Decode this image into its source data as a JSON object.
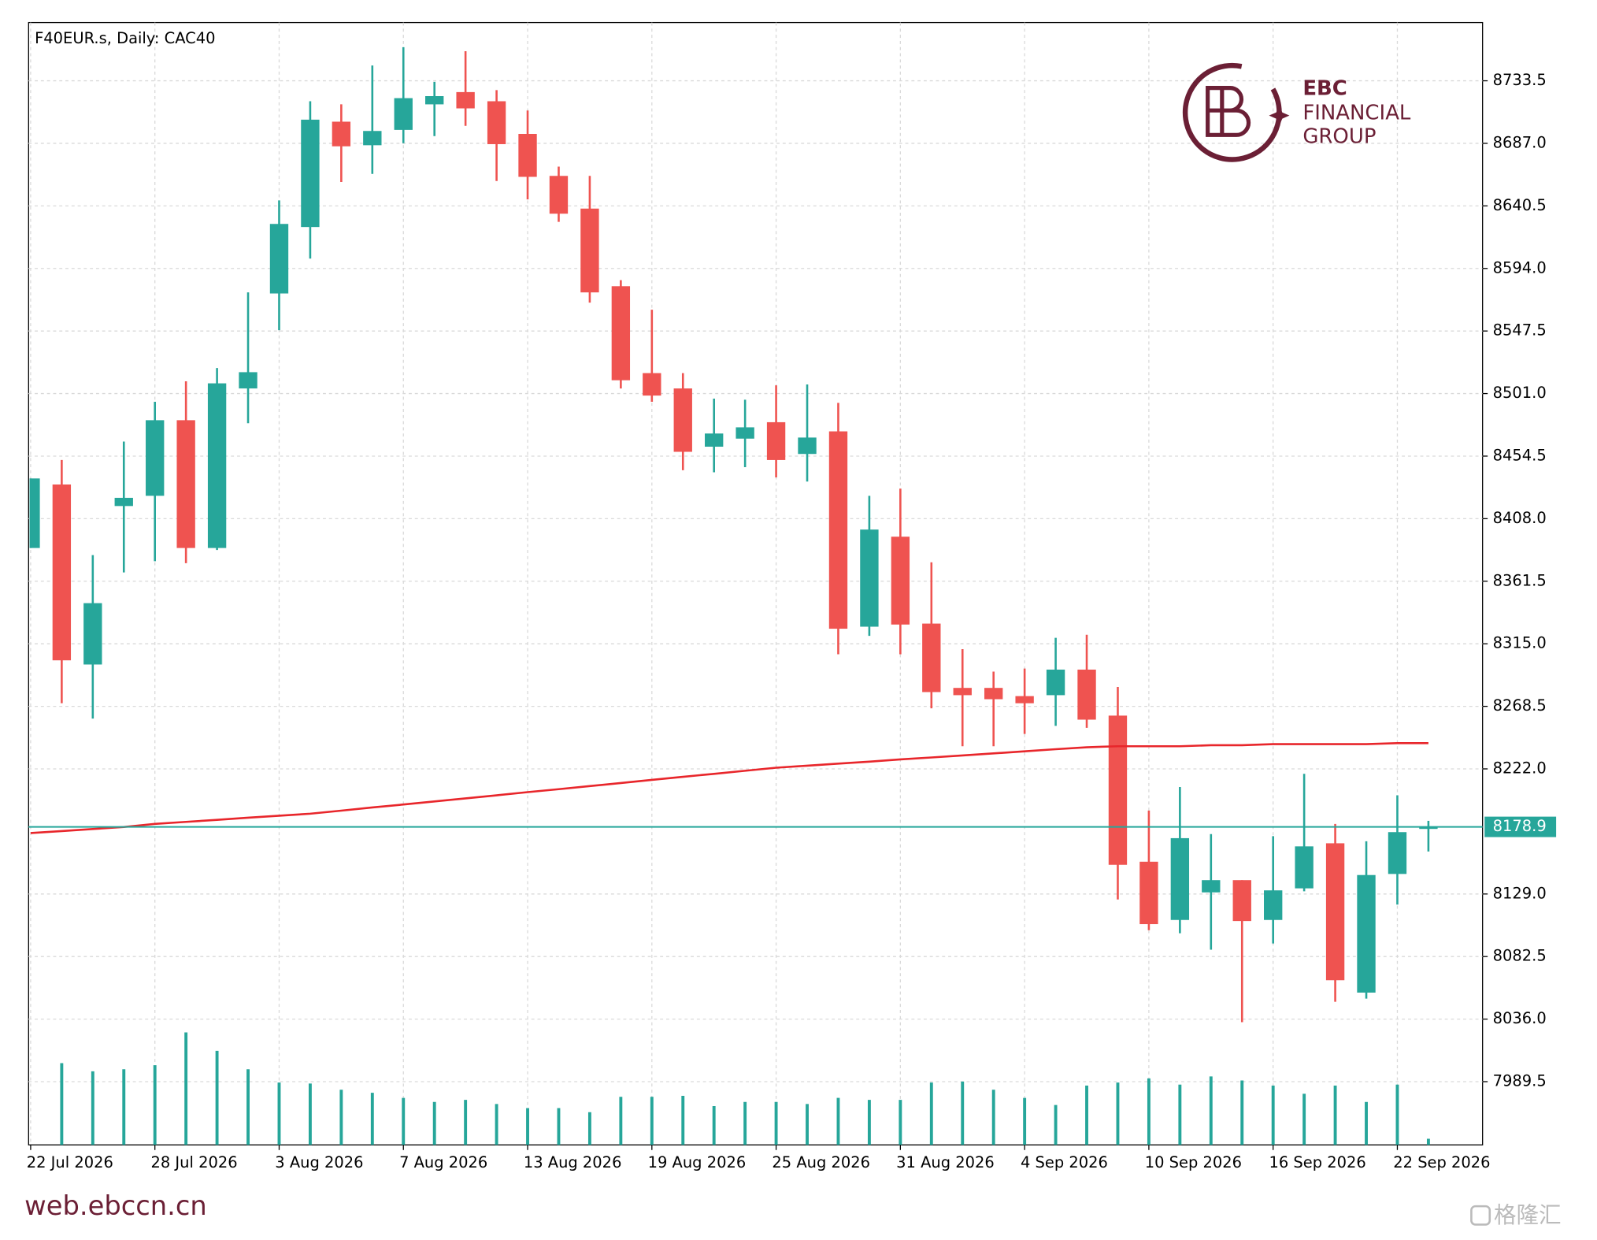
{
  "chart_data": {
    "type": "candlestick",
    "title": "F40EUR.s, Daily:  CAC40",
    "categories": [
      "22 Jul 2026",
      null,
      null,
      null,
      "28 Jul 2026",
      null,
      null,
      null,
      "3 Aug 2026",
      null,
      null,
      null,
      "7 Aug 2026",
      null,
      null,
      null,
      "13 Aug 2026",
      null,
      null,
      null,
      "19 Aug 2026",
      null,
      null,
      null,
      "25 Aug 2026",
      null,
      null,
      null,
      "31 Aug 2026",
      null,
      null,
      null,
      "4 Sep 2026",
      null,
      null,
      null,
      "10 Sep 2026",
      null,
      null,
      null,
      "16 Sep 2026",
      null,
      null,
      null,
      "22 Sep 2026",
      null
    ],
    "open": [
      8386.2,
      8433.4,
      8299.6,
      8417.4,
      8425.0,
      8481.2,
      8386.2,
      8504.8,
      8575.4,
      8624.8,
      8703.1,
      8685.6,
      8697.0,
      8716.0,
      8725.1,
      8718.3,
      8694.0,
      8662.8,
      8638.5,
      8580.8,
      8516.2,
      8504.8,
      8461.5,
      8467.5,
      8479.7,
      8456.1,
      8472.9,
      8327.7,
      8394.6,
      8330.0,
      8282.2,
      8282.2,
      8276.1,
      8276.8,
      8295.8,
      8261.6,
      8153.0,
      8109.7,
      8130.2,
      8139.3,
      8109.7,
      8133.2,
      8166.7,
      8055.7,
      8143.9,
      8177.5
    ],
    "high": [
      8437.9,
      8451.6,
      8380.9,
      8465.3,
      8494.9,
      8510.1,
      8520.0,
      8576.2,
      8644.6,
      8718.3,
      8716.0,
      8744.9,
      8758.5,
      8732.7,
      8755.5,
      8726.6,
      8711.4,
      8669.7,
      8662.8,
      8585.3,
      8563.3,
      8516.2,
      8497.2,
      8496.4,
      8507.1,
      8507.8,
      8494.1,
      8425.0,
      8430.3,
      8375.6,
      8311.0,
      8294.3,
      8296.6,
      8319.4,
      8321.7,
      8282.9,
      8191.0,
      8208.5,
      8173.5,
      8139.3,
      8172.0,
      8218.3,
      8181.1,
      8168.2,
      8202.4,
      8183.4
    ],
    "low": [
      8386.2,
      8270.8,
      8259.4,
      8368.0,
      8376.4,
      8374.9,
      8384.7,
      8478.9,
      8548.1,
      8601.3,
      8658.3,
      8664.3,
      8687.1,
      8692.4,
      8700.0,
      8659.0,
      8645.3,
      8628.6,
      8568.6,
      8504.8,
      8494.9,
      8444.0,
      8442.5,
      8446.3,
      8438.7,
      8435.6,
      8307.2,
      8320.9,
      8307.2,
      8267.0,
      8238.8,
      8238.8,
      8248.0,
      8254.0,
      8252.5,
      8124.9,
      8102.1,
      8099.8,
      8087.6,
      8033.7,
      8092.2,
      8131.0,
      8048.9,
      8051.2,
      8121.1,
      8160.6
    ],
    "close": [
      8437.9,
      8302.7,
      8345.2,
      8423.5,
      8481.2,
      8386.2,
      8508.6,
      8516.9,
      8627.1,
      8704.6,
      8684.8,
      8696.2,
      8720.6,
      8722.1,
      8713.0,
      8686.4,
      8662.1,
      8634.7,
      8576.2,
      8510.9,
      8499.5,
      8457.7,
      8471.3,
      8475.9,
      8451.6,
      8468.3,
      8326.2,
      8399.9,
      8329.3,
      8279.1,
      8276.8,
      8273.8,
      8270.8,
      8295.8,
      8258.6,
      8150.7,
      8106.6,
      8170.5,
      8139.3,
      8108.9,
      8131.7,
      8164.4,
      8064.9,
      8143.1,
      8175.0,
      8178.9
    ],
    "up_color": "#26a69a",
    "down_color": "#ef5350",
    "moving_average": {
      "color": "#e8262b",
      "values": [
        8174.3,
        8175.8,
        8177.3,
        8178.8,
        8181.1,
        8182.6,
        8184.1,
        8185.7,
        8187.2,
        8188.7,
        8191.0,
        8193.3,
        8195.5,
        8197.8,
        8200.1,
        8202.4,
        8204.7,
        8206.9,
        8209.2,
        8211.5,
        8213.8,
        8216.1,
        8218.3,
        8220.6,
        8222.9,
        8224.4,
        8225.9,
        8227.4,
        8229.0,
        8230.5,
        8232.0,
        8233.5,
        8235.0,
        8236.6,
        8238.1,
        8238.8,
        8238.8,
        8238.8,
        8239.6,
        8239.6,
        8240.4,
        8240.4,
        8240.4,
        8240.4,
        8241.1,
        8241.1
      ]
    },
    "volume": {
      "color": "#26a69a",
      "values": [
        null,
        80,
        72,
        74,
        78,
        110,
        92,
        74,
        61,
        60,
        54,
        51,
        46,
        42,
        44,
        40,
        36,
        36,
        32,
        47,
        47,
        48,
        38,
        42,
        42,
        40,
        46,
        44,
        44,
        61,
        62,
        54,
        46,
        39,
        58,
        61,
        65,
        59,
        67,
        63,
        58,
        50,
        58,
        42,
        59,
        6
      ]
    },
    "current_price": 8178.9,
    "current_price_color": "#26a69a",
    "ylim": [
      7942.5,
      8776.8
    ],
    "yticks": [
      8733.5,
      {
        "value": 8687,
        "label": "8687.0"
      },
      8640.5,
      {
        "value": 8594,
        "label": "8594.0"
      },
      8547.5,
      {
        "value": 8501,
        "label": "8501.0"
      },
      8454.5,
      {
        "value": 8408,
        "label": "8408.0"
      },
      8361.5,
      {
        "value": 8315,
        "label": "8315.0"
      },
      8268.5,
      {
        "value": 8222,
        "label": "8222.0"
      },
      {
        "value": 8129,
        "label": "8129.0"
      },
      8082.5,
      {
        "value": 8036,
        "label": "8036.0"
      },
      7989.5
    ],
    "grid": true
  },
  "logo": {
    "lines": [
      "EBC",
      "FINANCIAL",
      "GROUP"
    ]
  },
  "footer": "web.ebccn.cn",
  "watermark": "格隆汇"
}
